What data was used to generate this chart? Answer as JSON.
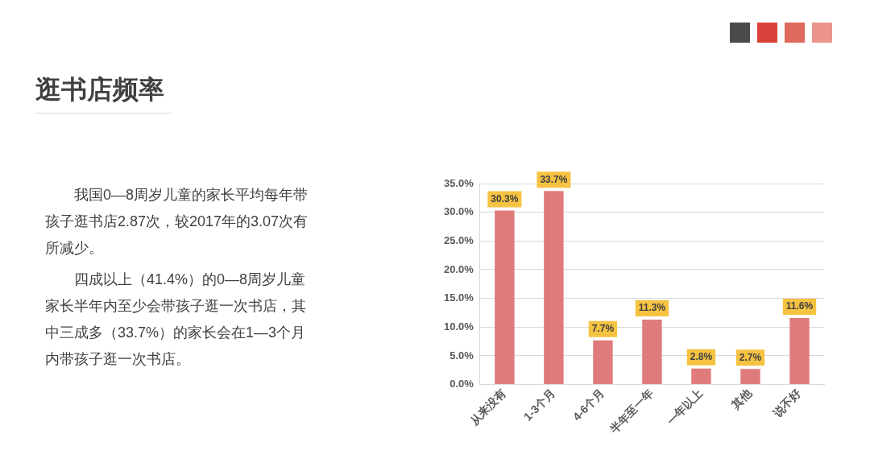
{
  "chart_data": {
    "type": "bar",
    "title": "逛书店频率",
    "annotations": [
      "我国0—8周岁儿童的家长平均每年带孩子逛书店2.87次，较2017年的3.07次有所减少。",
      "四成以上（41.4%）的0—8周岁儿童家长半年内至少会带孩子逛一次书店，其中三成多（33.7%）的家长会在1—3个月内带孩子逛一次书店。"
    ],
    "categories": [
      "从来没有",
      "1-3个月",
      "4-6个月",
      "半年至一年",
      "一年以上",
      "其他",
      "说不好"
    ],
    "values": [
      30.3,
      33.7,
      7.7,
      11.3,
      2.8,
      2.7,
      11.6
    ],
    "color": "#e07b7b",
    "value_labels": [
      "30.3%",
      "33.7%",
      "7.7%",
      "11.3%",
      "2.8%",
      "2.7%",
      "11.6%"
    ],
    "ylim": [
      0,
      35
    ],
    "yticks": [
      {
        "value": 0,
        "label": "0.0%"
      },
      {
        "value": 5,
        "label": "5.0%"
      },
      {
        "value": 10,
        "label": "10.0%"
      },
      {
        "value": 15,
        "label": "15.0%"
      },
      {
        "value": 20,
        "label": "20.0%"
      },
      {
        "value": 25,
        "label": "25.0%"
      },
      {
        "value": 30,
        "label": "30.0%"
      },
      {
        "value": 35,
        "label": "35.0%"
      }
    ],
    "grid": "y",
    "legend": false
  }
}
